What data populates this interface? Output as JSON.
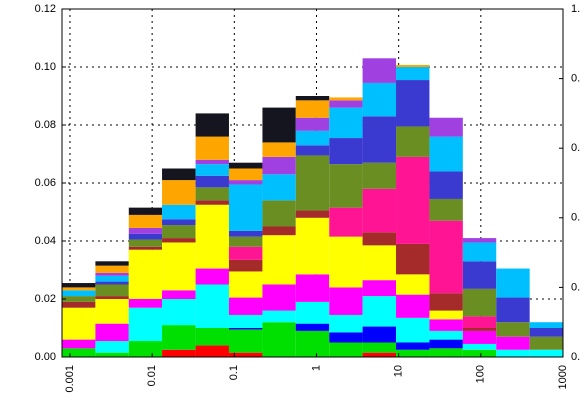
{
  "chart_data": {
    "type": "histogram",
    "xscale": "log",
    "bins": [
      0.0008,
      0.00204,
      0.0052,
      0.0132,
      0.0338,
      0.0861,
      0.22,
      0.56,
      1.43,
      3.64,
      9.29,
      23.7,
      60.4,
      154,
      393,
      1000
    ],
    "series": [
      {
        "color": "#ff0000",
        "values": [
          0,
          0,
          0,
          0.0025,
          0.004,
          0.0015,
          0,
          0,
          0,
          0.0015,
          0,
          0,
          0,
          0,
          0
        ]
      },
      {
        "color": "#00e000",
        "values": [
          0.003,
          0.0015,
          0.0055,
          0.0085,
          0.006,
          0.008,
          0.012,
          0.009,
          0.005,
          0.0035,
          0.0025,
          0.003,
          0.0025,
          0,
          0
        ]
      },
      {
        "color": "#0000ff",
        "values": [
          0,
          0,
          0,
          0,
          0,
          0.0005,
          0,
          0.0025,
          0.0035,
          0.0055,
          0.0025,
          0.003,
          0,
          0,
          0
        ]
      },
      {
        "color": "#00ffff",
        "values": [
          0,
          0.004,
          0.0115,
          0.009,
          0.015,
          0.0045,
          0.004,
          0.0075,
          0.006,
          0.0105,
          0.0085,
          0.003,
          0.002,
          0.0025,
          0.0025
        ]
      },
      {
        "color": "#ff00ff",
        "values": [
          0.003,
          0.006,
          0.003,
          0.003,
          0.0055,
          0.006,
          0.009,
          0.0095,
          0.0095,
          0.0055,
          0.008,
          0.004,
          0.0045,
          0.0045,
          0
        ]
      },
      {
        "color": "#ffff00",
        "values": [
          0.011,
          0.0085,
          0.017,
          0.0165,
          0.022,
          0.009,
          0.017,
          0.0195,
          0.0175,
          0.012,
          0.007,
          0.003,
          0,
          0,
          0
        ]
      },
      {
        "color": "#a52a2a",
        "values": [
          0.002,
          0.001,
          0.001,
          0.0015,
          0.0015,
          0.004,
          0.003,
          0.0025,
          0,
          0.0045,
          0.0105,
          0.006,
          0.001,
          0,
          0
        ]
      },
      {
        "color": "#ff1493",
        "values": [
          0,
          0,
          0,
          0,
          0,
          0.0045,
          0,
          0,
          0.01,
          0.015,
          0.03,
          0.025,
          0.004,
          0,
          0
        ]
      },
      {
        "color": "#6b8e23",
        "values": [
          0.002,
          0.004,
          0.0025,
          0.0045,
          0.0045,
          0.0035,
          0.009,
          0.019,
          0.015,
          0.009,
          0.0105,
          0.0075,
          0.0095,
          0.005,
          0.0045
        ]
      },
      {
        "color": "#3a3ad0",
        "values": [
          0,
          0.001,
          0.002,
          0.002,
          0.004,
          0.002,
          0,
          0.0035,
          0.009,
          0.016,
          0.016,
          0.0095,
          0.0095,
          0.0085,
          0.003
        ]
      },
      {
        "color": "#00bfff",
        "values": [
          0.002,
          0.002,
          0,
          0.005,
          0.004,
          0.016,
          0.009,
          0.005,
          0.0105,
          0.0115,
          0.0045,
          0.012,
          0.0065,
          0.01,
          0.002
        ]
      },
      {
        "color": "#a040e0",
        "values": [
          0,
          0.001,
          0.002,
          0,
          0.0015,
          0.0015,
          0.006,
          0.0045,
          0.0025,
          0.0085,
          0,
          0.0065,
          0.0015,
          0,
          0
        ]
      },
      {
        "color": "#ffa500",
        "values": [
          0.001,
          0.0025,
          0.0045,
          0.0085,
          0.008,
          0.004,
          0.005,
          0.006,
          0.001,
          0,
          0.0007,
          0,
          0,
          0,
          0
        ]
      },
      {
        "color": "#151520",
        "values": [
          0.0015,
          0.0015,
          0.0025,
          0.004,
          0.008,
          0.002,
          0.012,
          0.0015,
          0,
          0,
          0,
          0,
          0,
          0,
          0
        ]
      }
    ],
    "xlim": [
      0.0008,
      1000
    ],
    "xticks": [
      0.001,
      0.01,
      0.1,
      1,
      10,
      100,
      1000
    ],
    "ylim": [
      0,
      0.12
    ],
    "yticks": [
      {
        "value": 0,
        "label": "0.00"
      },
      0.02,
      0.04,
      0.06,
      0.08,
      {
        "value": 0.1,
        "label": "0.10"
      },
      0.12
    ],
    "y2lim": [
      0,
      1
    ],
    "y2ticks": [
      {
        "value": 0,
        "label": "0."
      },
      {
        "value": 0.2,
        "label": "0."
      },
      {
        "value": 0.4,
        "label": "0."
      },
      {
        "value": 0.6,
        "label": "0."
      },
      {
        "value": 0.8,
        "label": "0."
      },
      {
        "value": 1,
        "label": "1."
      }
    ],
    "grid": true
  }
}
